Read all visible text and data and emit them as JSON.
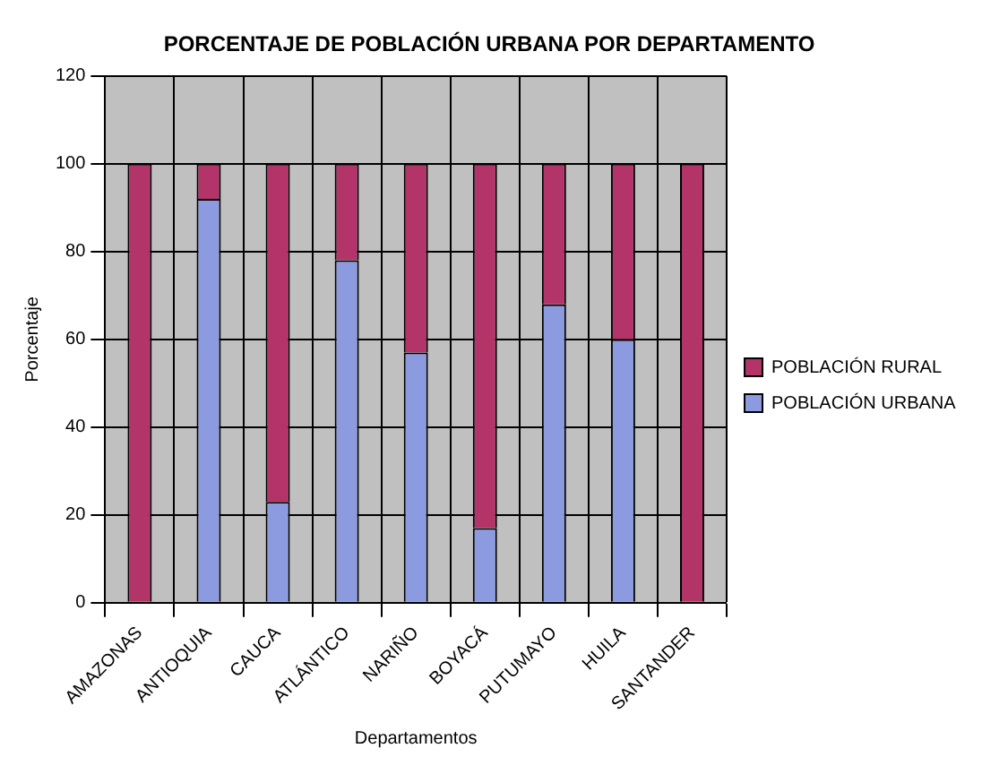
{
  "chart_data": {
    "type": "bar",
    "title": "PORCENTAJE DE POBLACIÓN URBANA POR DEPARTAMENTO",
    "xlabel": "Departamentos",
    "ylabel": "Porcentaje",
    "categories": [
      "AMAZONAS",
      "ANTIOQUIA",
      "CAUCA",
      "ATLÁNTICO",
      "NARIÑO",
      "BOYACÁ",
      "PUTUMAYO",
      "HUILA",
      "SANTANDER"
    ],
    "series": [
      {
        "name": "POBLACIÓN URBANA",
        "color": "#8c9be0",
        "values": [
          0,
          92,
          23,
          78,
          57,
          17,
          68,
          60,
          0
        ]
      },
      {
        "name": "POBLACIÓN RURAL",
        "color": "#b23468",
        "values": [
          100,
          8,
          77,
          22,
          43,
          83,
          32,
          40,
          100
        ]
      }
    ],
    "stacked": true,
    "ylim": [
      0,
      120
    ],
    "yticks": [
      0,
      20,
      40,
      60,
      80,
      100,
      120
    ],
    "grid": true,
    "legend": "right"
  }
}
